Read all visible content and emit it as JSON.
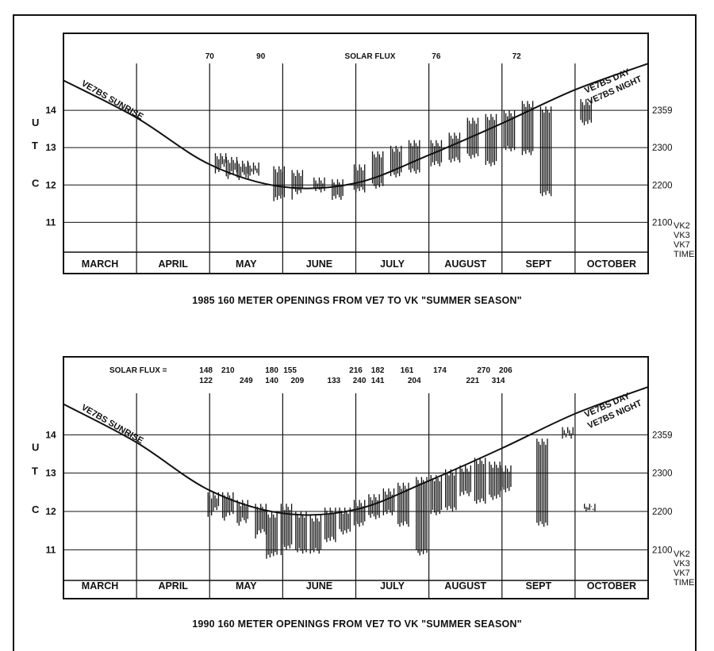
{
  "chart_data": [
    {
      "type": "scatter",
      "title": "1985 160 METER OPENINGS FROM VE7 TO VK  \"SUMMER SEASON\"",
      "months": [
        "MARCH",
        "APRIL",
        "MAY",
        "JUNE",
        "JULY",
        "AUGUST",
        "SEPT",
        "OCTOBER"
      ],
      "y_left_label": [
        "U",
        "T",
        "C"
      ],
      "y_left_ticks": [
        11,
        12,
        13,
        14
      ],
      "y_right_ticks": [
        "2100",
        "2200",
        "2300",
        "2359"
      ],
      "y_right_footer": [
        "VK2",
        "VK3",
        "VK7",
        "TIME"
      ],
      "ylim": [
        10.2,
        15.0
      ],
      "solar_flux_heading": "SOLAR FLUX",
      "solar_flux": [
        {
          "x": 2.0,
          "row": 1,
          "label": "70"
        },
        {
          "x": 2.7,
          "row": 1,
          "label": "90"
        },
        {
          "x": 5.1,
          "row": 1,
          "label": "76"
        },
        {
          "x": 6.2,
          "row": 1,
          "label": "72"
        }
      ],
      "curve_labels": [
        "VE7BS SUNRISE",
        "VE7BS DAY",
        "VE7BS NIGHT"
      ],
      "sunrise_curve": {
        "month_index": [
          0,
          1,
          2,
          3,
          4,
          5,
          6,
          7,
          8
        ],
        "utc": [
          14.8,
          13.8,
          12.55,
          11.95,
          12.05,
          12.8,
          13.65,
          14.55,
          15.25
        ]
      },
      "openings": [
        {
          "x": 2.15,
          "lo": 12.45,
          "hi": 12.85
        },
        {
          "x": 2.3,
          "lo": 12.3,
          "hi": 12.75
        },
        {
          "x": 2.45,
          "lo": 12.2,
          "hi": 12.65
        },
        {
          "x": 2.6,
          "lo": 12.25,
          "hi": 12.6
        },
        {
          "x": 2.95,
          "lo": 11.6,
          "hi": 12.5
        },
        {
          "x": 3.2,
          "lo": 11.75,
          "hi": 12.4
        },
        {
          "x": 3.5,
          "lo": 11.8,
          "hi": 12.2
        },
        {
          "x": 3.75,
          "lo": 11.6,
          "hi": 12.15
        },
        {
          "x": 4.05,
          "lo": 11.8,
          "hi": 12.55
        },
        {
          "x": 4.3,
          "lo": 11.9,
          "hi": 12.9
        },
        {
          "x": 4.55,
          "lo": 12.2,
          "hi": 13.05
        },
        {
          "x": 4.8,
          "lo": 12.3,
          "hi": 13.2
        },
        {
          "x": 5.1,
          "lo": 12.5,
          "hi": 13.2
        },
        {
          "x": 5.35,
          "lo": 12.6,
          "hi": 13.4
        },
        {
          "x": 5.6,
          "lo": 12.7,
          "hi": 13.8
        },
        {
          "x": 5.85,
          "lo": 12.5,
          "hi": 13.9
        },
        {
          "x": 6.1,
          "lo": 12.9,
          "hi": 14.0
        },
        {
          "x": 6.35,
          "lo": 12.8,
          "hi": 14.25
        },
        {
          "x": 6.6,
          "lo": 11.7,
          "hi": 14.1
        },
        {
          "x": 7.15,
          "lo": 13.6,
          "hi": 14.3
        }
      ]
    },
    {
      "type": "scatter",
      "title": "1990 160 METER OPENINGS FROM VE7 TO VK  \"SUMMER SEASON\"",
      "months": [
        "MARCH",
        "APRIL",
        "MAY",
        "JUNE",
        "JULY",
        "AUGUST",
        "SEPT",
        "OCTOBER"
      ],
      "y_left_label": [
        "U",
        "T",
        "C"
      ],
      "y_left_ticks": [
        11,
        12,
        13,
        14
      ],
      "y_right_ticks": [
        "2100",
        "2200",
        "2300",
        "2359"
      ],
      "y_right_footer": [
        "VK2",
        "VK3",
        "VK7",
        "TIME"
      ],
      "ylim": [
        10.2,
        15.0
      ],
      "solar_flux_heading": "SOLAR FLUX =",
      "solar_flux": [
        {
          "x": 1.95,
          "row": 1,
          "label": "148"
        },
        {
          "x": 2.25,
          "row": 1,
          "label": "210"
        },
        {
          "x": 2.85,
          "row": 1,
          "label": "180"
        },
        {
          "x": 3.1,
          "row": 1,
          "label": "155"
        },
        {
          "x": 4.0,
          "row": 1,
          "label": "216"
        },
        {
          "x": 4.3,
          "row": 1,
          "label": "182"
        },
        {
          "x": 4.7,
          "row": 1,
          "label": "161"
        },
        {
          "x": 5.15,
          "row": 1,
          "label": "174"
        },
        {
          "x": 5.75,
          "row": 1,
          "label": "270"
        },
        {
          "x": 6.05,
          "row": 1,
          "label": "206"
        },
        {
          "x": 1.95,
          "row": 2,
          "label": "122"
        },
        {
          "x": 2.5,
          "row": 2,
          "label": "249"
        },
        {
          "x": 2.85,
          "row": 2,
          "label": "140"
        },
        {
          "x": 3.2,
          "row": 2,
          "label": "209"
        },
        {
          "x": 3.7,
          "row": 2,
          "label": "133"
        },
        {
          "x": 4.05,
          "row": 2,
          "label": "240"
        },
        {
          "x": 4.3,
          "row": 2,
          "label": "141"
        },
        {
          "x": 4.8,
          "row": 2,
          "label": "204"
        },
        {
          "x": 5.6,
          "row": 2,
          "label": "221"
        },
        {
          "x": 5.95,
          "row": 2,
          "label": "314"
        }
      ],
      "curve_labels": [
        "VE7BS SUNRISE",
        "VE7BS DAY",
        "VE7BS NIGHT"
      ],
      "sunrise_curve": {
        "month_index": [
          0,
          1,
          2,
          3,
          4,
          5,
          6,
          7,
          8
        ],
        "utc": [
          14.8,
          13.8,
          12.55,
          11.95,
          12.05,
          12.8,
          13.65,
          14.55,
          15.25
        ]
      },
      "openings": [
        {
          "x": 2.05,
          "lo": 12.0,
          "hi": 12.5
        },
        {
          "x": 2.25,
          "lo": 11.9,
          "hi": 12.5
        },
        {
          "x": 2.45,
          "lo": 11.7,
          "hi": 12.3
        },
        {
          "x": 2.7,
          "lo": 11.4,
          "hi": 12.2
        },
        {
          "x": 2.85,
          "lo": 10.8,
          "hi": 12.0
        },
        {
          "x": 3.05,
          "lo": 11.0,
          "hi": 12.2
        },
        {
          "x": 3.25,
          "lo": 10.9,
          "hi": 12.0
        },
        {
          "x": 3.45,
          "lo": 10.9,
          "hi": 11.9
        },
        {
          "x": 3.65,
          "lo": 11.2,
          "hi": 12.1
        },
        {
          "x": 3.85,
          "lo": 11.4,
          "hi": 12.1
        },
        {
          "x": 4.05,
          "lo": 11.6,
          "hi": 12.3
        },
        {
          "x": 4.25,
          "lo": 11.8,
          "hi": 12.45
        },
        {
          "x": 4.45,
          "lo": 11.9,
          "hi": 12.6
        },
        {
          "x": 4.65,
          "lo": 11.6,
          "hi": 12.75
        },
        {
          "x": 4.9,
          "lo": 10.85,
          "hi": 12.9
        },
        {
          "x": 5.1,
          "lo": 11.9,
          "hi": 12.95
        },
        {
          "x": 5.3,
          "lo": 12.0,
          "hi": 13.1
        },
        {
          "x": 5.5,
          "lo": 12.4,
          "hi": 13.2
        },
        {
          "x": 5.7,
          "lo": 12.2,
          "hi": 13.4
        },
        {
          "x": 5.9,
          "lo": 12.3,
          "hi": 13.3
        },
        {
          "x": 6.05,
          "lo": 12.5,
          "hi": 13.2
        },
        {
          "x": 6.55,
          "lo": 11.6,
          "hi": 13.9
        },
        {
          "x": 6.9,
          "lo": 13.9,
          "hi": 14.2
        },
        {
          "x": 7.2,
          "lo": 12.0,
          "hi": 12.2
        }
      ]
    }
  ]
}
